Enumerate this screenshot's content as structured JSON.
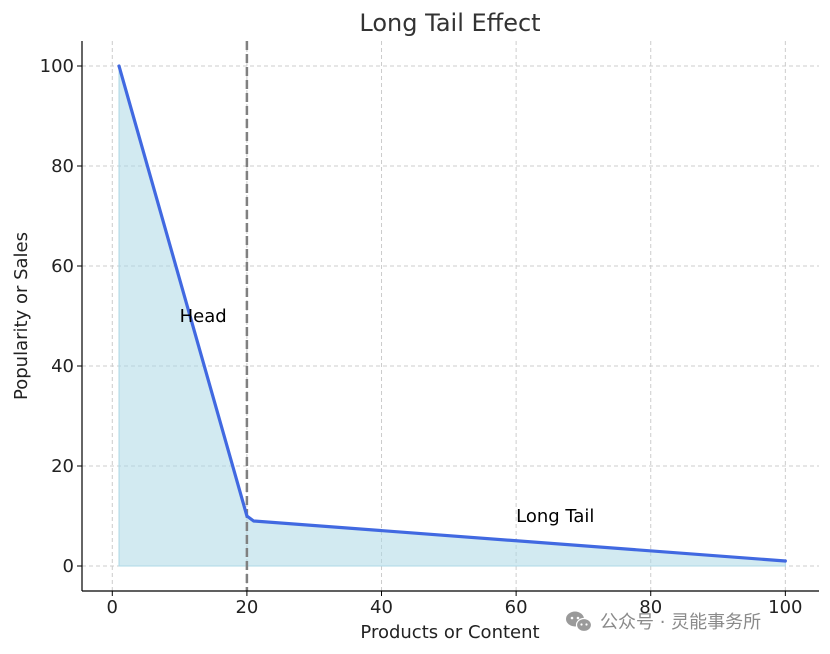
{
  "chart_data": {
    "type": "line",
    "title": "Long Tail Effect",
    "xlabel": "Products or Content",
    "ylabel": "Popularity or Sales",
    "xlim": [
      -4.5,
      105
    ],
    "ylim": [
      -5,
      105
    ],
    "xticks": [
      0,
      20,
      40,
      60,
      80,
      100
    ],
    "yticks": [
      0,
      20,
      40,
      60,
      80,
      100
    ],
    "grid": true,
    "series": [
      {
        "name": "Popularity",
        "color": "#4169E1",
        "fill_color": "#ADD8E6",
        "x": [
          1,
          20,
          21,
          100
        ],
        "y": [
          100,
          10,
          9,
          1
        ]
      }
    ],
    "vline": {
      "x": 20,
      "color": "#808080",
      "style": "dashed"
    },
    "annotations": [
      {
        "text": "Head",
        "x": 10,
        "y": 50
      },
      {
        "text": "Long Tail",
        "x": 60,
        "y": 10
      }
    ]
  },
  "watermark": {
    "icon": "wechat-icon",
    "text": "公众号 · 灵能事务所"
  }
}
